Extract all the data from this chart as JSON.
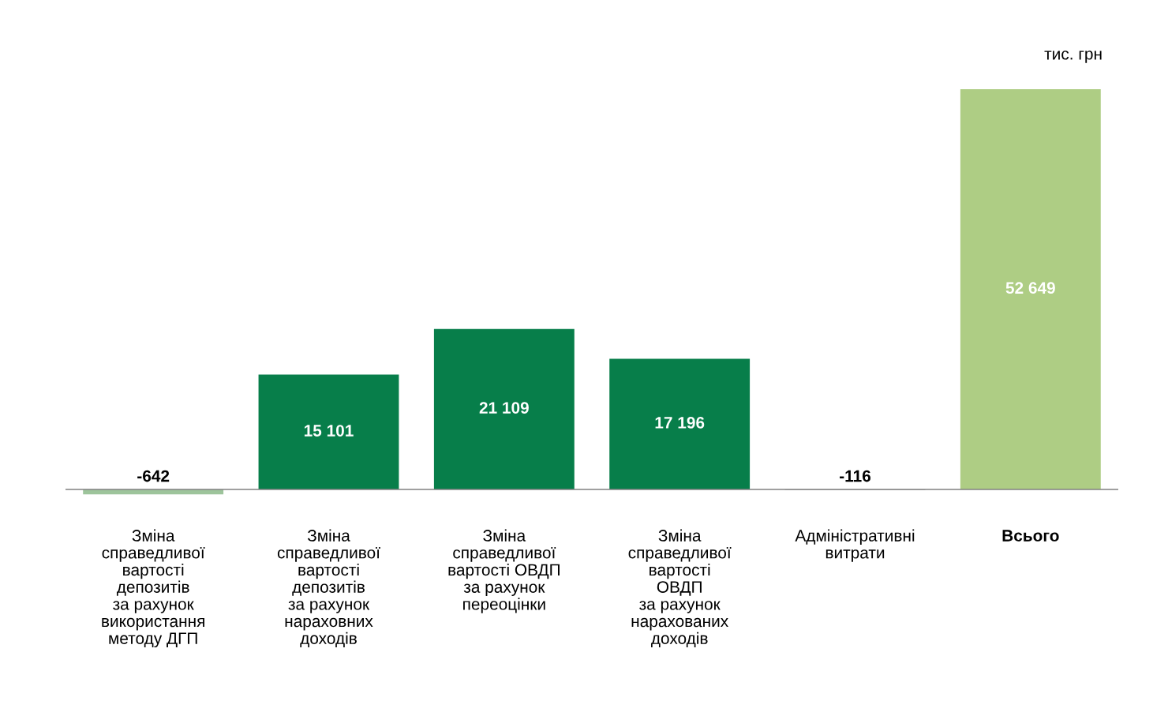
{
  "chart_data": {
    "type": "bar",
    "categories": [
      "Зміна\nсправедливої\nвартості\nдепозитів\nза рахунок\nвикористання\nметоду ДГП",
      "Зміна\nсправедливої\nвартості\nдепозитів\nза рахунок\nнараховних\nдоходів",
      "Зміна\nсправедливої\nвартості ОВДП\nза рахунок\nпереоцінки",
      "Зміна\nсправедливої\nвартості\nОВДП\nза рахунок\nнарахованих\nдоходів",
      "Адміністративні\nвитрати",
      "Всього"
    ],
    "values": [
      -642,
      15101,
      21109,
      17196,
      -116,
      52649
    ],
    "value_labels": [
      "-642",
      "15 101",
      "21 109",
      "17 196",
      "-116",
      "52 649"
    ],
    "colors": [
      "#9dc49b",
      "#077e4a",
      "#077e4a",
      "#077e4a",
      "#bfbfbf",
      "#aecd84"
    ],
    "annotations": [
      "тис. грн"
    ],
    "grid": false,
    "legend": false
  }
}
